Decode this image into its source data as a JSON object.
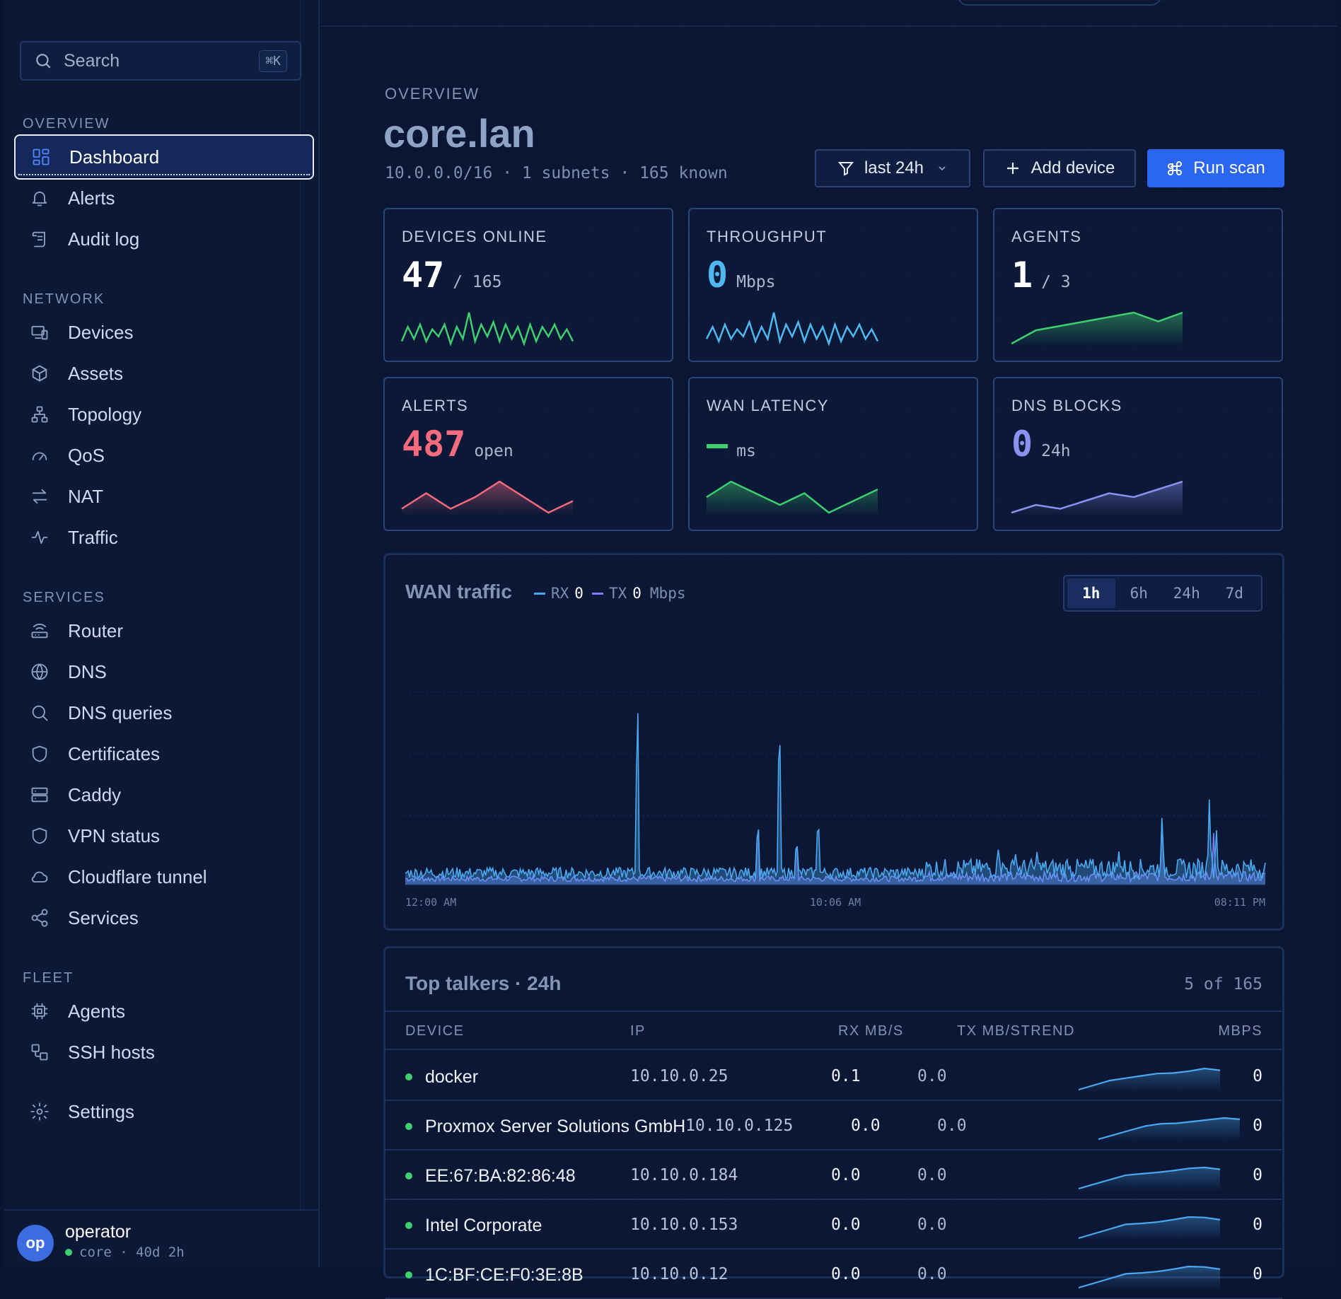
{
  "sidebar": {
    "search": {
      "placeholder": "Search",
      "shortcut": "⌘K"
    },
    "sections": [
      {
        "label": "OVERVIEW",
        "items": [
          {
            "label": "Dashboard",
            "icon": "dashboard-icon",
            "active": true
          },
          {
            "label": "Alerts",
            "icon": "bell-icon"
          },
          {
            "label": "Audit log",
            "icon": "scroll-icon"
          }
        ]
      },
      {
        "label": "NETWORK",
        "items": [
          {
            "label": "Devices",
            "icon": "devices-icon"
          },
          {
            "label": "Assets",
            "icon": "box-icon"
          },
          {
            "label": "Topology",
            "icon": "topology-icon"
          },
          {
            "label": "QoS",
            "icon": "gauge-icon"
          },
          {
            "label": "NAT",
            "icon": "arrows-icon"
          },
          {
            "label": "Traffic",
            "icon": "activity-icon"
          }
        ]
      },
      {
        "label": "SERVICES",
        "items": [
          {
            "label": "Router",
            "icon": "router-icon"
          },
          {
            "label": "DNS",
            "icon": "globe-icon"
          },
          {
            "label": "DNS queries",
            "icon": "search-icon"
          },
          {
            "label": "Certificates",
            "icon": "shield-icon"
          },
          {
            "label": "Caddy",
            "icon": "server-icon"
          },
          {
            "label": "VPN status",
            "icon": "shield-icon"
          },
          {
            "label": "Cloudflare tunnel",
            "icon": "cloud-icon"
          },
          {
            "label": "Services",
            "icon": "share-icon"
          }
        ]
      },
      {
        "label": "FLEET",
        "items": [
          {
            "label": "Agents",
            "icon": "cpu-icon"
          },
          {
            "label": "SSH hosts",
            "icon": "ssh-icon"
          }
        ]
      }
    ],
    "settings": {
      "label": "Settings",
      "icon": "gear-icon"
    },
    "user": {
      "initials": "op",
      "name": "operator",
      "host": "core",
      "uptime": "40d 2h"
    }
  },
  "header": {
    "eyebrow": "OVERVIEW",
    "title": "core.lan",
    "subnet": "10.0.0.0/16",
    "subnets": "1 subnets",
    "known": "165 known",
    "range_label": "last 24h",
    "add_label": "Add device",
    "scan_label": "Run scan"
  },
  "stats": [
    {
      "label": "DEVICES ONLINE",
      "value": "47",
      "unit": "/ 165",
      "color": "#ffffff",
      "spark_color": "#3ecf6e",
      "spark_type": "line",
      "spark": [
        2,
        8,
        3,
        9,
        2,
        7,
        4,
        9,
        1,
        8,
        3,
        14,
        2,
        9,
        4,
        10,
        2,
        9,
        3,
        8,
        1,
        9,
        2,
        8,
        4,
        9,
        3,
        7,
        2
      ]
    },
    {
      "label": "THROUGHPUT",
      "value": "0",
      "unit": "Mbps",
      "color": "#4fb8f0",
      "spark_color": "#4fb8f0",
      "spark_type": "line",
      "spark": [
        3,
        8,
        2,
        9,
        3,
        7,
        4,
        10,
        2,
        8,
        3,
        14,
        2,
        9,
        4,
        10,
        2,
        9,
        3,
        8,
        1,
        9,
        2,
        8,
        4,
        9,
        3,
        7,
        2
      ]
    },
    {
      "label": "AGENTS",
      "value": "1",
      "unit": "/ 3",
      "color": "#ffffff",
      "spark_color": "#3ecf6e",
      "spark_type": "area",
      "spark": [
        1,
        4,
        5,
        6,
        7,
        8,
        6,
        8
      ]
    },
    {
      "label": "ALERTS",
      "value": "487",
      "unit": "open",
      "color": "#f46b7d",
      "spark_color": "#f46b7d",
      "spark_type": "area",
      "spark": [
        2,
        6,
        2,
        5,
        9,
        5,
        1,
        4
      ]
    },
    {
      "label": "WAN LATENCY",
      "value": "—",
      "unit": "ms",
      "color": "#3ecf6e",
      "spark_color": "#3ecf6e",
      "spark_type": "area",
      "spark": [
        5,
        9,
        6,
        3,
        6,
        1,
        4,
        7
      ]
    },
    {
      "label": "DNS BLOCKS",
      "value": "0",
      "unit": "24h",
      "color": "#8b91f0",
      "spark_color": "#8b91f0",
      "spark_type": "area",
      "spark": [
        1,
        3,
        2,
        4,
        6,
        5,
        7,
        9
      ]
    }
  ],
  "wan": {
    "title": "WAN traffic",
    "rx_label": "RX",
    "rx_value": "0",
    "tx_label": "TX",
    "tx_value": "0",
    "unit": "Mbps",
    "ranges": [
      "1h",
      "6h",
      "24h",
      "7d"
    ],
    "active_range": "1h",
    "rx_color": "#4aa8f0",
    "tx_color": "#7b7ff5"
  },
  "chart_data": {
    "type": "area",
    "title": "WAN traffic",
    "xlabel": "",
    "ylabel": "",
    "x_ticks": [
      "12:00 AM",
      "10:06 AM",
      "08:11 PM"
    ],
    "grid": true,
    "series": [
      {
        "name": "RX",
        "baseline": 0.6,
        "spikes": [
          [
            0.27,
            10.0
          ],
          [
            0.41,
            3.6
          ],
          [
            0.435,
            9.3
          ],
          [
            0.455,
            2.6
          ],
          [
            0.48,
            3.8
          ],
          [
            0.69,
            2.1
          ],
          [
            0.71,
            1.8
          ],
          [
            0.735,
            1.9
          ],
          [
            0.77,
            1.4
          ],
          [
            0.83,
            1.8
          ],
          [
            0.88,
            3.5
          ],
          [
            0.935,
            4.3
          ],
          [
            0.943,
            2.9
          ]
        ]
      },
      {
        "name": "TX",
        "baseline": 0.3,
        "spikes": [
          [
            0.41,
            3.4
          ],
          [
            0.455,
            2.4
          ],
          [
            0.88,
            3.3
          ],
          [
            0.94,
            2.6
          ]
        ]
      }
    ],
    "ylim": [
      0,
      12
    ]
  },
  "talkers": {
    "title": "Top talkers · 24h",
    "count": "5 of 165",
    "columns": [
      "DEVICE",
      "IP",
      "RX MB/S",
      "TX MB/S",
      "TREND",
      "MBPS"
    ],
    "rows": [
      {
        "device": "docker",
        "ip": "10.10.0.25",
        "rx": "0.1",
        "tx": "0.0",
        "mbps": "0",
        "trend": [
          1,
          2,
          3,
          3.5,
          4,
          4.5,
          4.6,
          5,
          5.6,
          5.2
        ]
      },
      {
        "device": "Proxmox Server Solutions GmbH",
        "ip": "10.10.0.125",
        "rx": "0.0",
        "tx": "0.0",
        "mbps": "0",
        "trend": [
          1,
          2,
          3,
          4,
          4.5,
          4.6,
          5,
          5.4,
          5.8,
          5.5
        ]
      },
      {
        "device": "EE:67:BA:82:86:48",
        "ip": "10.10.0.184",
        "rx": "0.0",
        "tx": "0.0",
        "mbps": "0",
        "trend": [
          1,
          2,
          3,
          4,
          4.3,
          4.6,
          5,
          5.5,
          5.7,
          5.3
        ]
      },
      {
        "device": "Intel Corporate",
        "ip": "10.10.0.153",
        "rx": "0.0",
        "tx": "0.0",
        "mbps": "0",
        "trend": [
          1,
          2,
          3,
          4,
          4.2,
          4.5,
          5,
          5.6,
          5.5,
          5
        ]
      },
      {
        "device": "1C:BF:CE:F0:3E:8B",
        "ip": "10.10.0.12",
        "rx": "0.0",
        "tx": "0.0",
        "mbps": "0",
        "trend": [
          1,
          2,
          3,
          4,
          4.2,
          4.5,
          5,
          5.6,
          5.5,
          5
        ]
      }
    ]
  }
}
